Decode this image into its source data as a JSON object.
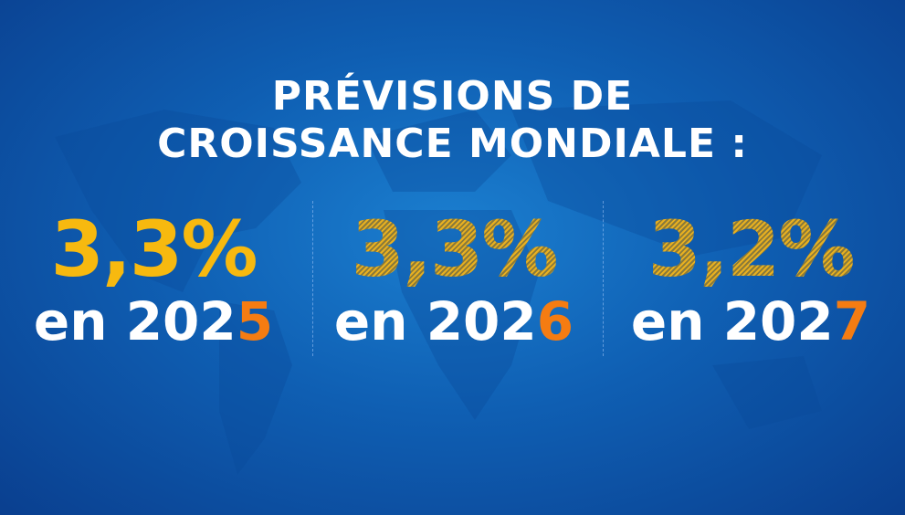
{
  "title": {
    "line1": "PRÉVISIONS DE",
    "line2": "CROISSANCE MONDIALE :"
  },
  "forecasts": [
    {
      "value": "3,3%",
      "year_prefix": "en 202",
      "year_last": "5"
    },
    {
      "value": "3,3%",
      "year_prefix": "en 202",
      "year_last": "6"
    },
    {
      "value": "3,2%",
      "year_prefix": "en 202",
      "year_last": "7"
    }
  ],
  "colors": {
    "background": "#0f5fb3",
    "value": "#f7b90f",
    "year": "#ffffff",
    "year_accent": "#f57c12"
  }
}
